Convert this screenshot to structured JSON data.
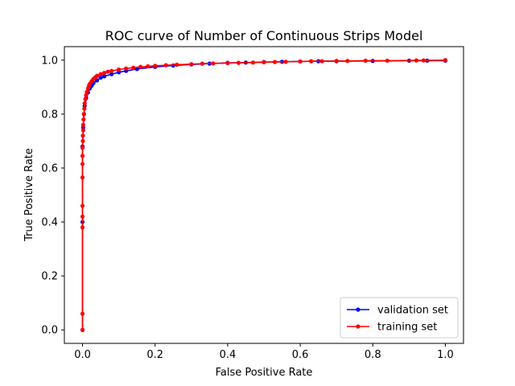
{
  "chart_data": {
    "type": "line",
    "title": "ROC curve of Number of Continuous Strips Model",
    "xlabel": "False Positive Rate",
    "ylabel": "True Positive Rate",
    "xlim": [
      -0.05,
      1.05
    ],
    "ylim": [
      -0.05,
      1.05
    ],
    "xticks": [
      0.0,
      0.2,
      0.4,
      0.6,
      0.8,
      1.0
    ],
    "yticks": [
      0.0,
      0.2,
      0.4,
      0.6,
      0.8,
      1.0
    ],
    "xtick_labels": [
      "0.0",
      "0.2",
      "0.4",
      "0.6",
      "0.8",
      "1.0"
    ],
    "ytick_labels": [
      "0.0",
      "0.2",
      "0.4",
      "0.6",
      "0.8",
      "1.0"
    ],
    "grid": false,
    "legend_position": "bottom-right",
    "series": [
      {
        "name": "validation set",
        "color": "#0000ff",
        "marker": "circle",
        "x": [
          0.0,
          0.0,
          0.0,
          0.002,
          0.004,
          0.006,
          0.01,
          0.015,
          0.02,
          0.025,
          0.03,
          0.04,
          0.05,
          0.06,
          0.08,
          0.1,
          0.12,
          0.15,
          0.2,
          0.25,
          0.3,
          0.35,
          0.4,
          0.45,
          0.5,
          0.55,
          0.6,
          0.65,
          0.7,
          0.8,
          0.9,
          0.95,
          1.0
        ],
        "y": [
          0.0,
          0.4,
          0.68,
          0.75,
          0.8,
          0.83,
          0.86,
          0.88,
          0.895,
          0.905,
          0.915,
          0.925,
          0.935,
          0.94,
          0.948,
          0.955,
          0.96,
          0.967,
          0.975,
          0.98,
          0.984,
          0.987,
          0.99,
          0.991,
          0.993,
          0.994,
          0.995,
          0.996,
          0.996,
          0.997,
          0.998,
          0.998,
          0.998
        ]
      },
      {
        "name": "training set",
        "color": "#ff0000",
        "marker": "circle",
        "x": [
          0.0,
          0.0,
          0.0,
          0.0,
          0.0,
          0.0,
          0.0,
          0.0,
          0.0,
          0.001,
          0.001,
          0.002,
          0.002,
          0.003,
          0.004,
          0.005,
          0.006,
          0.008,
          0.01,
          0.012,
          0.015,
          0.018,
          0.02,
          0.025,
          0.03,
          0.035,
          0.04,
          0.05,
          0.06,
          0.07,
          0.08,
          0.1,
          0.12,
          0.14,
          0.16,
          0.18,
          0.2,
          0.23,
          0.26,
          0.3,
          0.33,
          0.36,
          0.4,
          0.43,
          0.47,
          0.5,
          0.53,
          0.56,
          0.6,
          0.63,
          0.66,
          0.7,
          0.73,
          0.78,
          0.84,
          0.92,
          0.94,
          1.0
        ],
        "y": [
          0.0,
          0.06,
          0.38,
          0.42,
          0.46,
          0.565,
          0.615,
          0.645,
          0.675,
          0.7,
          0.72,
          0.74,
          0.76,
          0.78,
          0.8,
          0.82,
          0.84,
          0.855,
          0.87,
          0.882,
          0.895,
          0.905,
          0.912,
          0.922,
          0.93,
          0.936,
          0.942,
          0.948,
          0.953,
          0.957,
          0.96,
          0.965,
          0.969,
          0.972,
          0.975,
          0.977,
          0.979,
          0.981,
          0.983,
          0.985,
          0.987,
          0.988,
          0.989,
          0.99,
          0.991,
          0.992,
          0.993,
          0.994,
          0.995,
          0.996,
          0.996,
          0.997,
          0.997,
          0.998,
          0.998,
          0.999,
          0.999,
          1.0
        ]
      }
    ]
  }
}
